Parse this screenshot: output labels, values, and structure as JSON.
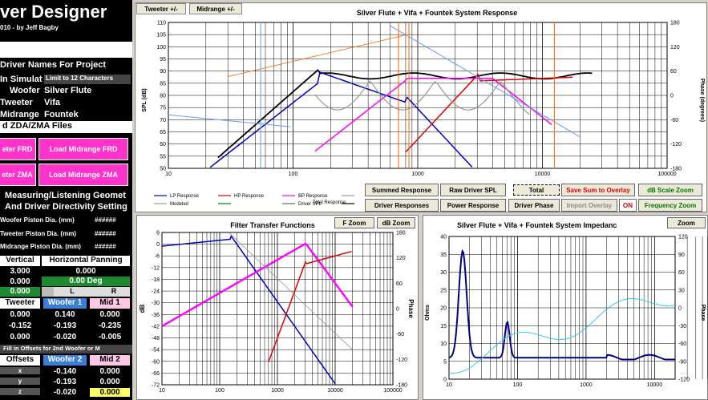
{
  "app": {
    "title": "ver Designer",
    "subtitle": "010 - by Jeff Bagby"
  },
  "left_panel": {
    "driver_names_header": "Driver Names For Project",
    "in_simulation": "In Simulat",
    "limit_note": "Limit to 12 Characters",
    "woofer_label": "Woofer",
    "woofer_name": "Silver Flute",
    "tweeter_label": "Tweeter",
    "tweeter_name": "Vifa",
    "midrange_label": "Midrange",
    "midrange_name": "Fountek",
    "zda_header": "d ZDA/ZMA Files",
    "load_frd_left": "eter FRD",
    "load_midrange_frd": "Load Midrange FRD",
    "load_zma_left": "eter ZMA",
    "load_midrange_zma": "Load Midrange ZMA",
    "geometry_header": "Measuring/Listening Geomet",
    "directivity_header": "And Driver Directivity Setting",
    "woofer_piston": "Woofer Piston Dia. (mm)",
    "tweeter_piston": "Tweeter Piston Dia. (mm)",
    "midrange_piston": "Midrange Piston Dia. (mm)",
    "hash": "######",
    "vertical": "Vertical",
    "horizontal": "Horizontal Panning",
    "v1": "3.000",
    "v2": "0.000",
    "v3": "0.000",
    "h1": "0.000",
    "h2": "0.00 Deg",
    "L": "L",
    "R": "R",
    "col_tweeter": "Tweeter",
    "col_woofer1": "Woofer 1",
    "col_mid1": "Mid 1",
    "row1": [
      "0.000",
      "0.140",
      "0.000"
    ],
    "row2": [
      "-0.152",
      "-0.193",
      "-0.235"
    ],
    "row3": [
      "0.000",
      "-0.020",
      "-0.005"
    ],
    "fill_offsets": "Fill in Offsets for 2nd Woofer or M",
    "offsets": "Offsets",
    "col_woofer2": "Woofer 2",
    "col_mid2": "Mid 2",
    "x": "x",
    "y": "y",
    "z": "z",
    "orow1": [
      "-0.140",
      "0.000"
    ],
    "orow2": [
      "-0.193",
      "0.000"
    ],
    "orow3": [
      "-0.020",
      "0.000"
    ]
  },
  "system_response": {
    "tab_tweeter": "Tweeter +/-",
    "tab_midrange": "Midrange +/-",
    "title": "Silver Flute + Vifa + Fountek  System Response",
    "y_label": "SPL (dB)",
    "y2_label": "Phase (degrees)",
    "y_ticks": [
      "110",
      "105",
      "100",
      "95",
      "90",
      "85",
      "80",
      "75",
      "70",
      "65",
      "60",
      "55",
      "50"
    ],
    "y2_ticks": [
      "180",
      "120",
      "60",
      "0",
      "-60",
      "-120",
      "-180"
    ],
    "x_ticks": [
      "10",
      "100",
      "1000",
      "10000",
      "100000"
    ],
    "legend": [
      "LP Response",
      "HP Response",
      "BP Response",
      "",
      "Modeled",
      "",
      "Driver SPL",
      "Total Response"
    ],
    "buttons": {
      "summed": "Summed Response",
      "raw": "Raw Driver SPL",
      "total": "Total",
      "save": "Save Sum to Overlay",
      "dbscale": "dB Scale Zoom",
      "driver_responses": "Driver Responses",
      "power": "Power Response",
      "phase": "Driver Phase",
      "import": "Import Overlay",
      "on": "ON",
      "freq_zoom": "Frequency Zoom"
    }
  },
  "filter_transfer": {
    "title": "Filter Transfer Functions",
    "fzoom": "F Zoom",
    "dbzoom": "dB Zoom",
    "y_label": "dB",
    "y2_label": "Phase",
    "y_ticks": [
      "6",
      "0",
      "-6",
      "-12",
      "-18",
      "-24",
      "-30",
      "-36",
      "-42",
      "-48",
      "-54",
      "-60",
      "-66",
      "-72"
    ],
    "y2_ticks": [
      "180",
      "120",
      "60",
      "0",
      "-60",
      "-120",
      "-180"
    ],
    "x_ticks": [
      "10",
      "100",
      "1000",
      "10000",
      "100000"
    ]
  },
  "impedance": {
    "title": "Silver Flute + Vifa + Fountek  System Impedanc",
    "zoom": "Zoom",
    "y_label": "Ohms",
    "y2_label": "Phase",
    "y_ticks": [
      "40",
      "35",
      "30",
      "25",
      "20",
      "15",
      "10",
      "5",
      "0"
    ],
    "y2_ticks": [
      "120",
      "90",
      "60",
      "30",
      "0",
      "-30",
      "-60",
      "-90",
      "-120"
    ],
    "x_ticks": [
      "10",
      "100",
      "1000",
      "10000"
    ]
  },
  "colors": {
    "lp": "#0000c0",
    "hp": "#e00000",
    "bp": "#ff00ff",
    "total": "#000000",
    "phase_lp": "#6699ff",
    "phase_hp": "#ff6600",
    "gray": "#999999"
  }
}
